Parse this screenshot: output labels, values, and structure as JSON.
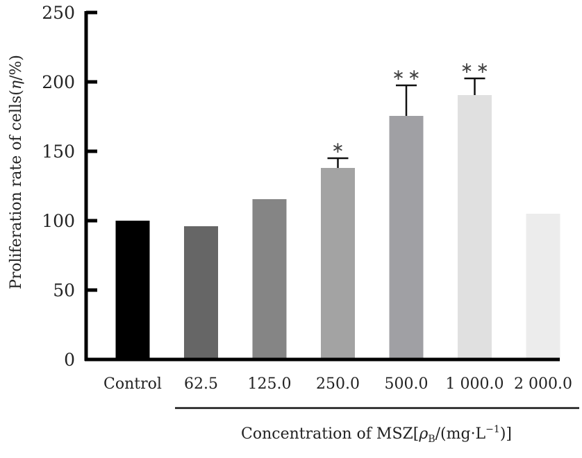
{
  "chart_data": {
    "type": "bar",
    "title": "",
    "ylabel": "Proliferation rate of cells( η/%)",
    "xlabel": "Concentration of MSZ[ρB/(mg·L⁻¹)]",
    "ylim": [
      0,
      250
    ],
    "yticks": [
      0,
      50,
      100,
      150,
      200,
      250
    ],
    "ytick_labels": [
      "0",
      "50",
      "100",
      "150",
      "200",
      "250"
    ],
    "grid": false,
    "legend": "none",
    "categories": [
      "Control",
      "62.5",
      "125.0",
      "250.0",
      "500.0",
      "1 000.0",
      "2 000.0"
    ],
    "values": [
      100,
      96,
      115.5,
      138,
      175.5,
      190.5,
      105
    ],
    "error_upper": [
      null,
      null,
      null,
      7,
      22,
      12,
      null
    ],
    "significance": [
      "",
      "",
      "",
      "*",
      "**",
      "**",
      ""
    ],
    "bar_colors": [
      "#000000",
      "#666666",
      "#858585",
      "#a3a3a3",
      "#a0a0a4",
      "#e0e0e0",
      "#ececec"
    ]
  },
  "labels": {
    "ylabel_main": "Proliferation rate of cells(",
    "ylabel_eta": "η",
    "ylabel_tail": "/%)",
    "xlabel_main": "Concentration of MSZ[",
    "xlabel_rho": "ρ",
    "xlabel_sub": "B",
    "xlabel_mid": "/(mg·L",
    "xlabel_sup": "−1",
    "xlabel_end": ")]"
  }
}
